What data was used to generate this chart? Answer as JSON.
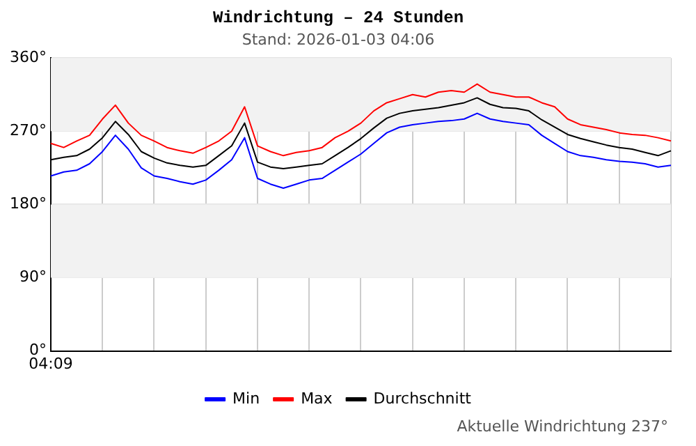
{
  "chart_data": {
    "type": "line",
    "title": "Windrichtung – 24 Stunden",
    "subtitle": "Stand: 2026-01-03 04:06",
    "categories": [
      "04:09",
      null,
      null,
      null,
      null,
      null,
      null,
      null,
      null,
      null,
      null,
      null,
      null,
      null,
      null,
      null,
      null,
      null,
      null,
      null,
      null,
      null,
      null,
      null,
      null,
      null,
      null,
      null,
      null,
      null,
      null,
      null,
      null,
      null,
      null,
      null,
      null,
      null,
      null,
      null,
      null,
      null,
      null,
      null,
      null,
      null,
      null,
      null,
      null
    ],
    "ylim": [
      0,
      360
    ],
    "yticks": [
      {
        "value": 0,
        "label": "0°"
      },
      {
        "value": 90,
        "label": "90°"
      },
      {
        "value": 180,
        "label": "180°"
      },
      {
        "value": 270,
        "label": "270°"
      },
      {
        "value": 360,
        "label": "360°"
      }
    ],
    "series": [
      {
        "name": "Min",
        "color": "#0000ff",
        "values": [
          215,
          220,
          222,
          230,
          245,
          265,
          248,
          225,
          215,
          212,
          208,
          205,
          210,
          222,
          235,
          262,
          212,
          205,
          200,
          205,
          210,
          212,
          222,
          232,
          242,
          255,
          268,
          275,
          278,
          280,
          282,
          283,
          285,
          292,
          285,
          282,
          280,
          278,
          265,
          255,
          245,
          240,
          238,
          235,
          233,
          232,
          230,
          226,
          228
        ]
      },
      {
        "name": "Max",
        "color": "#ff0000",
        "values": [
          255,
          250,
          258,
          265,
          285,
          302,
          280,
          265,
          258,
          250,
          246,
          243,
          250,
          258,
          270,
          300,
          252,
          245,
          240,
          244,
          246,
          250,
          262,
          270,
          280,
          295,
          305,
          310,
          315,
          312,
          318,
          320,
          318,
          328,
          318,
          315,
          312,
          312,
          305,
          300,
          285,
          278,
          275,
          272,
          268,
          266,
          265,
          262,
          258
        ]
      },
      {
        "name": "Durchschnitt",
        "color": "#000000",
        "values": [
          235,
          238,
          240,
          248,
          262,
          282,
          266,
          245,
          237,
          231,
          228,
          226,
          228,
          240,
          252,
          280,
          232,
          226,
          224,
          226,
          228,
          230,
          240,
          250,
          261,
          274,
          286,
          292,
          295,
          297,
          299,
          302,
          305,
          311,
          303,
          299,
          298,
          295,
          284,
          275,
          266,
          261,
          257,
          253,
          250,
          248,
          244,
          240,
          246
        ]
      }
    ],
    "bands": [
      {
        "axis": "y",
        "from": 90,
        "to": 180,
        "color": "#f2f2f2"
      },
      {
        "axis": "y",
        "from": 270,
        "to": 360,
        "color": "#f2f2f2"
      }
    ],
    "grid": true,
    "legend": "bottom",
    "marker": "none",
    "line_style": "solid",
    "annotations": [
      "Aktuelle Windrichtung 237°"
    ]
  }
}
